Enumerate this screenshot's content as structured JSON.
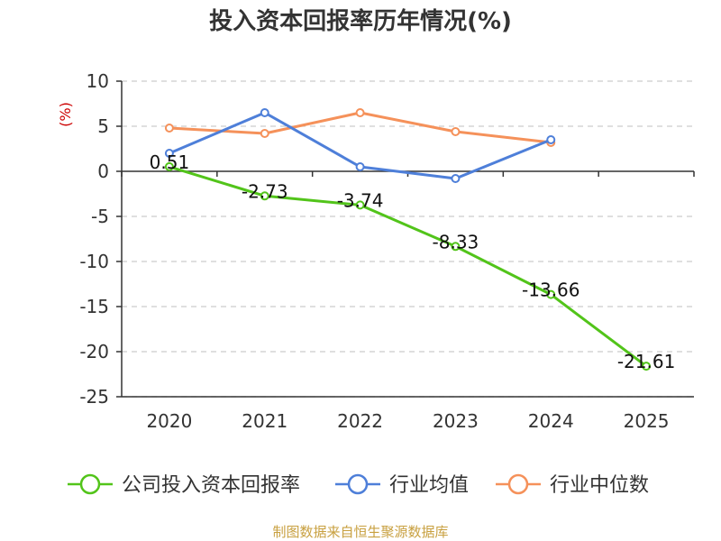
{
  "chart_data": {
    "type": "line",
    "title": "投入资本回报率历年情况(%)",
    "ylabel": "(%)",
    "xlabel": "",
    "categories": [
      "2020",
      "2021",
      "2022",
      "2023",
      "2024",
      "2025"
    ],
    "ylim": [
      -25,
      10
    ],
    "yticks": [
      10,
      5,
      0,
      -5,
      -10,
      -15,
      -20,
      -25
    ],
    "grid": true,
    "legend_position": "bottom",
    "series": [
      {
        "name": "公司投入资本回报率",
        "color": "#52c41a",
        "values": [
          0.51,
          -2.73,
          -3.74,
          -8.33,
          -13.66,
          -21.61
        ],
        "labels": [
          "0.51",
          "-2.73",
          "-3.74",
          "-8.33",
          "-13.66",
          "-21.61"
        ]
      },
      {
        "name": "行业均值",
        "color": "#4e7fd9",
        "values": [
          2.0,
          6.5,
          0.5,
          -0.8,
          3.5,
          null
        ]
      },
      {
        "name": "行业中位数",
        "color": "#f5915a",
        "values": [
          4.8,
          4.2,
          6.5,
          4.4,
          3.2,
          null
        ]
      }
    ],
    "source": "制图数据来自恒生聚源数据库"
  }
}
